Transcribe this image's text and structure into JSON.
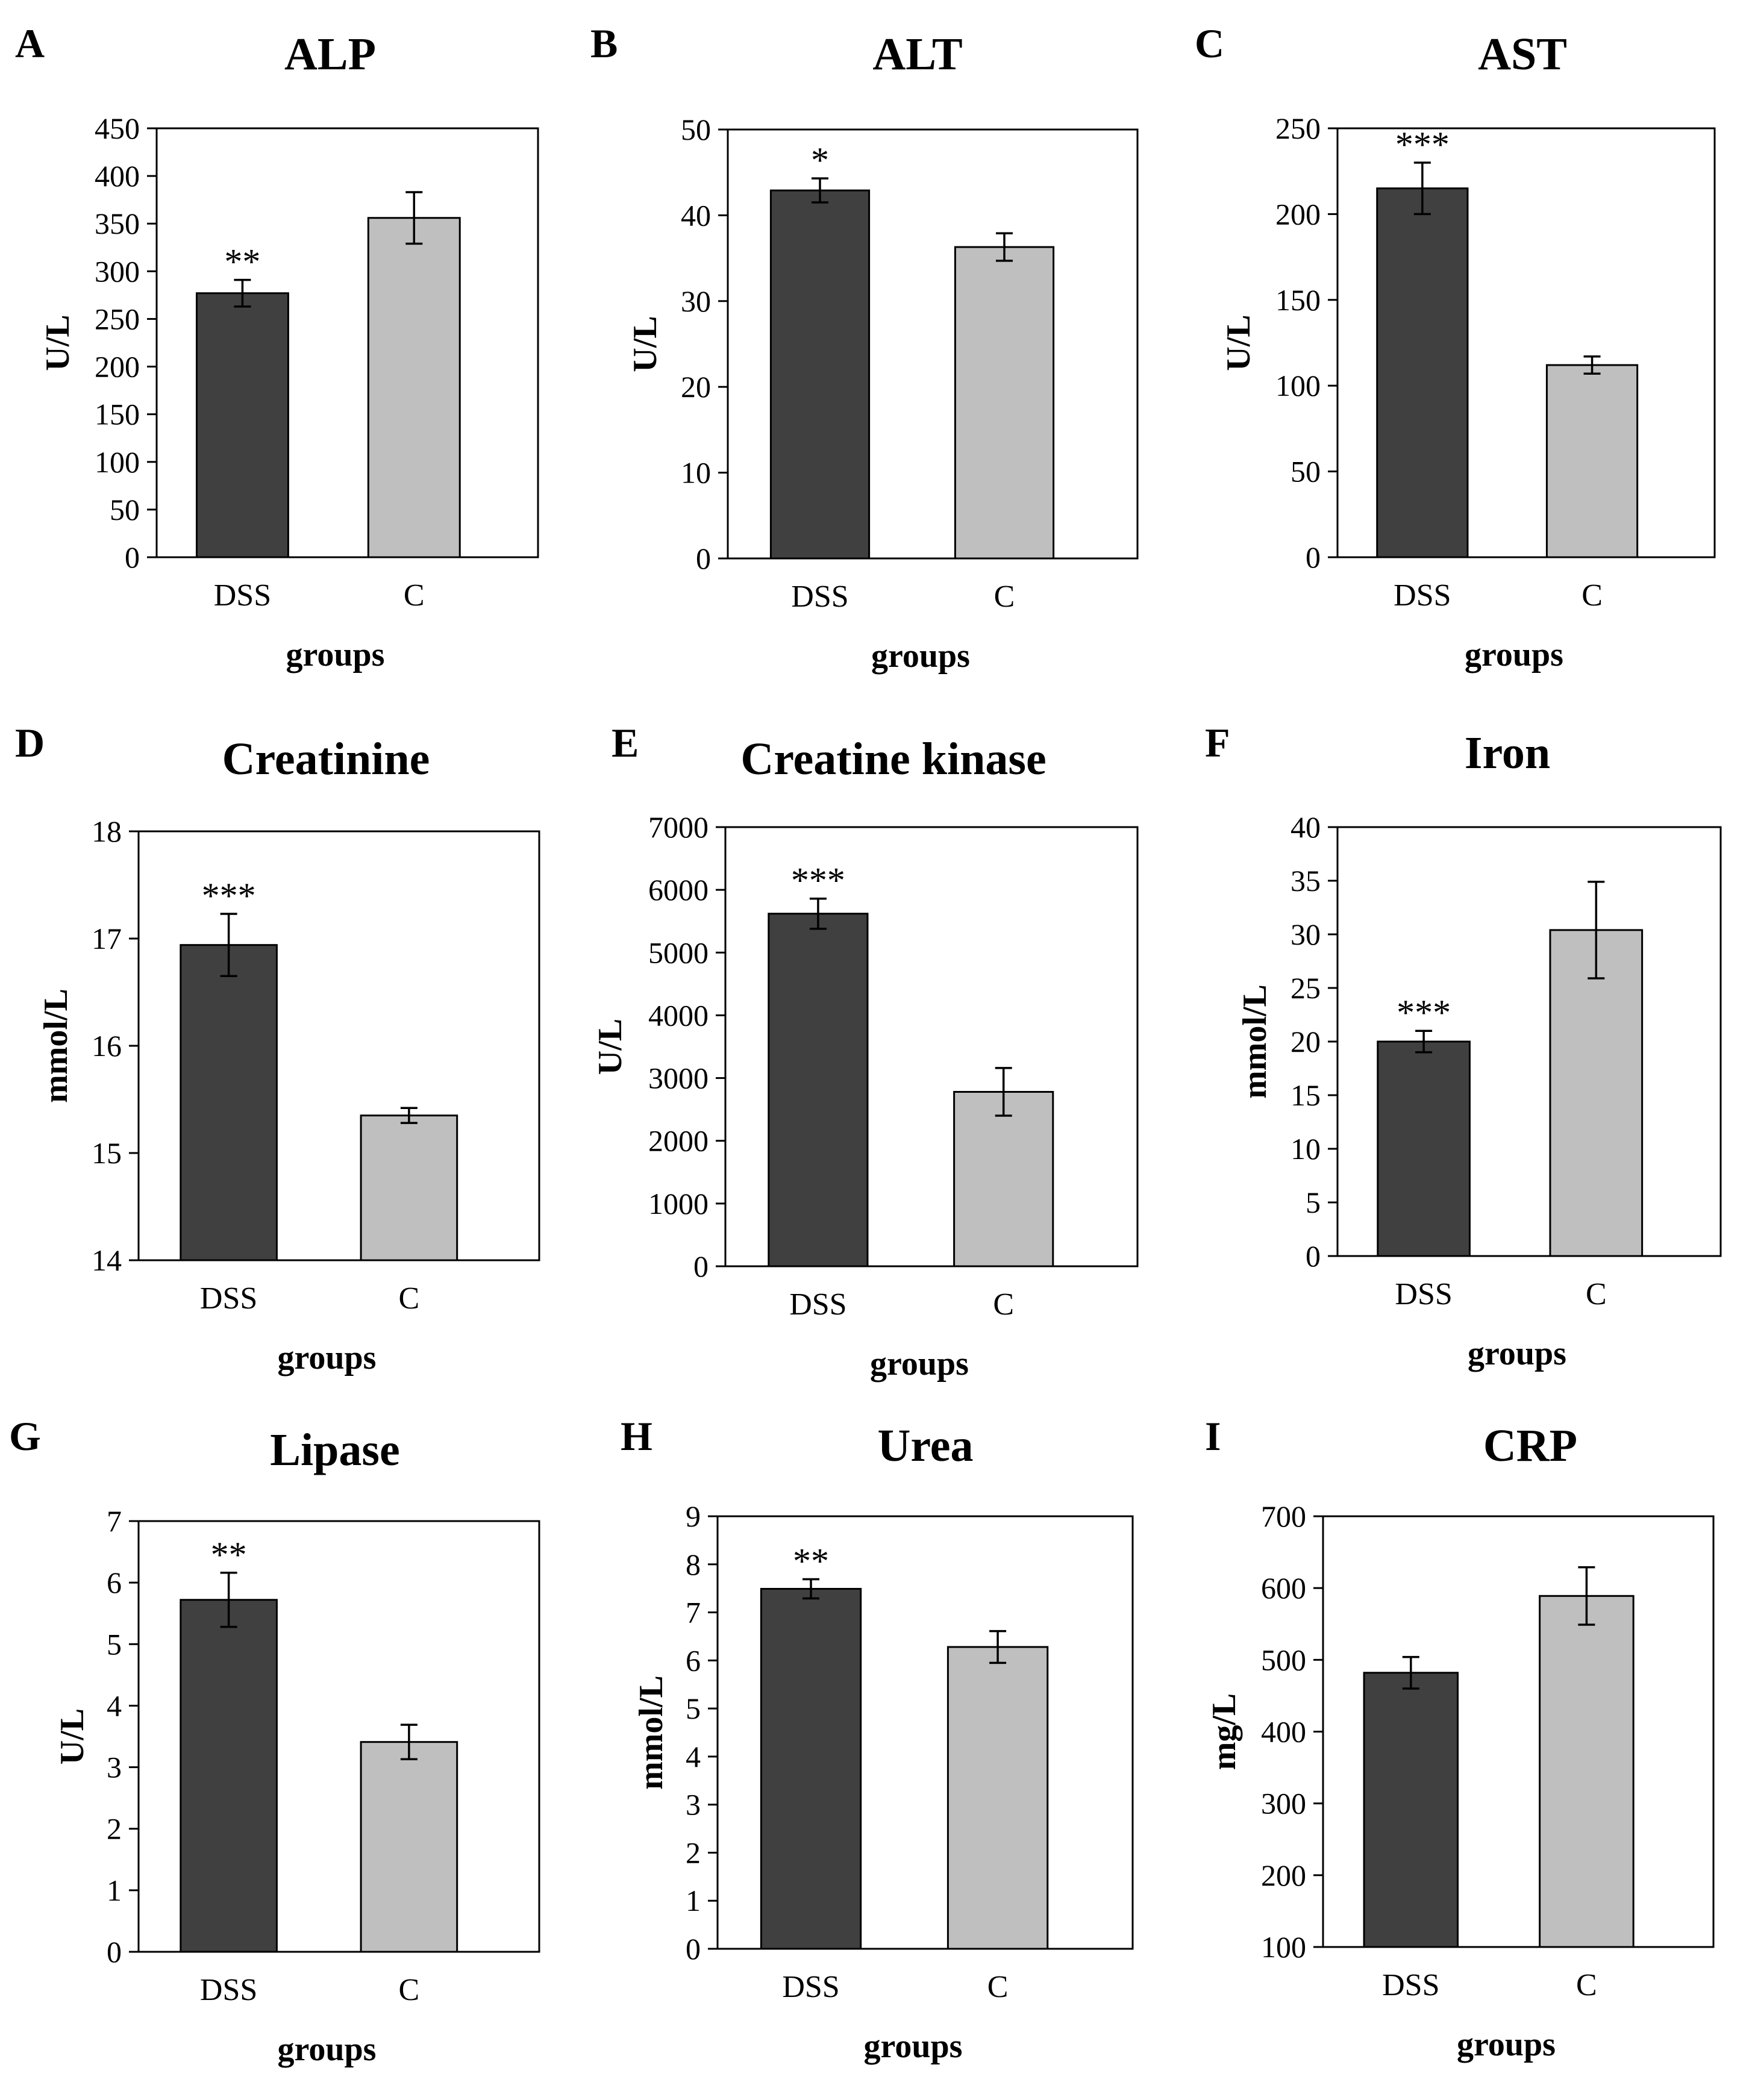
{
  "colors": {
    "dss_bar": "#404040",
    "c_bar": "#bfbfbf",
    "background": "#ffffff"
  },
  "chart_data": [
    {
      "panel": "A",
      "type": "bar",
      "title": "ALP",
      "xlabel": "groups",
      "ylabel": "U/L",
      "ylim": [
        0,
        450
      ],
      "yticks": [
        0,
        50,
        100,
        150,
        200,
        250,
        300,
        350,
        400,
        450
      ],
      "categories": [
        "DSS",
        "C"
      ],
      "values": [
        277,
        356
      ],
      "errors": [
        14,
        27
      ],
      "significance": [
        "**",
        ""
      ]
    },
    {
      "panel": "B",
      "type": "bar",
      "title": "ALT",
      "xlabel": "groups",
      "ylabel": "U/L",
      "ylim": [
        0,
        50
      ],
      "yticks": [
        0,
        10,
        20,
        30,
        40,
        50
      ],
      "categories": [
        "DSS",
        "C"
      ],
      "values": [
        42.9,
        36.3
      ],
      "errors": [
        1.4,
        1.6
      ],
      "significance": [
        "*",
        ""
      ]
    },
    {
      "panel": "C",
      "type": "bar",
      "title": "AST",
      "xlabel": "groups",
      "ylabel": "U/L",
      "ylim": [
        0,
        250
      ],
      "yticks": [
        0,
        50,
        100,
        150,
        200,
        250
      ],
      "categories": [
        "DSS",
        "C"
      ],
      "values": [
        215,
        112
      ],
      "errors": [
        15,
        5
      ],
      "significance": [
        "***",
        ""
      ]
    },
    {
      "panel": "D",
      "type": "bar",
      "title": "Creatinine",
      "xlabel": "groups",
      "ylabel": "mmol/L",
      "ylim": [
        14,
        18
      ],
      "yticks": [
        14,
        15,
        16,
        17,
        18
      ],
      "categories": [
        "DSS",
        "C"
      ],
      "values": [
        16.94,
        15.35
      ],
      "errors": [
        0.29,
        0.07
      ],
      "significance": [
        "***",
        ""
      ]
    },
    {
      "panel": "E",
      "type": "bar",
      "title": "Creatine kinase",
      "xlabel": "groups",
      "ylabel": "U/L",
      "ylim": [
        0,
        7000
      ],
      "yticks": [
        0,
        1000,
        2000,
        3000,
        4000,
        5000,
        6000,
        7000
      ],
      "categories": [
        "DSS",
        "C"
      ],
      "values": [
        5620,
        2780
      ],
      "errors": [
        240,
        380
      ],
      "significance": [
        "***",
        ""
      ]
    },
    {
      "panel": "F",
      "type": "bar",
      "title": "Iron",
      "xlabel": "groups",
      "ylabel": "mmol/L",
      "ylim": [
        0,
        40
      ],
      "yticks": [
        0,
        5,
        10,
        15,
        20,
        25,
        30,
        35,
        40
      ],
      "categories": [
        "DSS",
        "C"
      ],
      "values": [
        20,
        30.4
      ],
      "errors": [
        1,
        4.5
      ],
      "significance": [
        "***",
        ""
      ]
    },
    {
      "panel": "G",
      "type": "bar",
      "title": "Lipase",
      "xlabel": "groups",
      "ylabel": "U/L",
      "ylim": [
        0,
        7
      ],
      "yticks": [
        0,
        1,
        2,
        3,
        4,
        5,
        6,
        7
      ],
      "categories": [
        "DSS",
        "C"
      ],
      "values": [
        5.72,
        3.41
      ],
      "errors": [
        0.44,
        0.28
      ],
      "significance": [
        "**",
        ""
      ]
    },
    {
      "panel": "H",
      "type": "bar",
      "title": "Urea",
      "xlabel": "groups",
      "ylabel": "mmol/L",
      "ylim": [
        0,
        9
      ],
      "yticks": [
        0,
        1,
        2,
        3,
        4,
        5,
        6,
        7,
        8,
        9
      ],
      "categories": [
        "DSS",
        "C"
      ],
      "values": [
        7.49,
        6.28
      ],
      "errors": [
        0.2,
        0.33
      ],
      "significance": [
        "**",
        ""
      ]
    },
    {
      "panel": "I",
      "type": "bar",
      "title": "CRP",
      "xlabel": "groups",
      "ylabel": "mg/L",
      "ylim": [
        100,
        700
      ],
      "yticks": [
        100,
        200,
        300,
        400,
        500,
        600,
        700
      ],
      "categories": [
        "DSS",
        "C"
      ],
      "values": [
        482,
        589
      ],
      "errors": [
        22,
        40
      ],
      "significance": [
        "",
        ""
      ]
    }
  ]
}
